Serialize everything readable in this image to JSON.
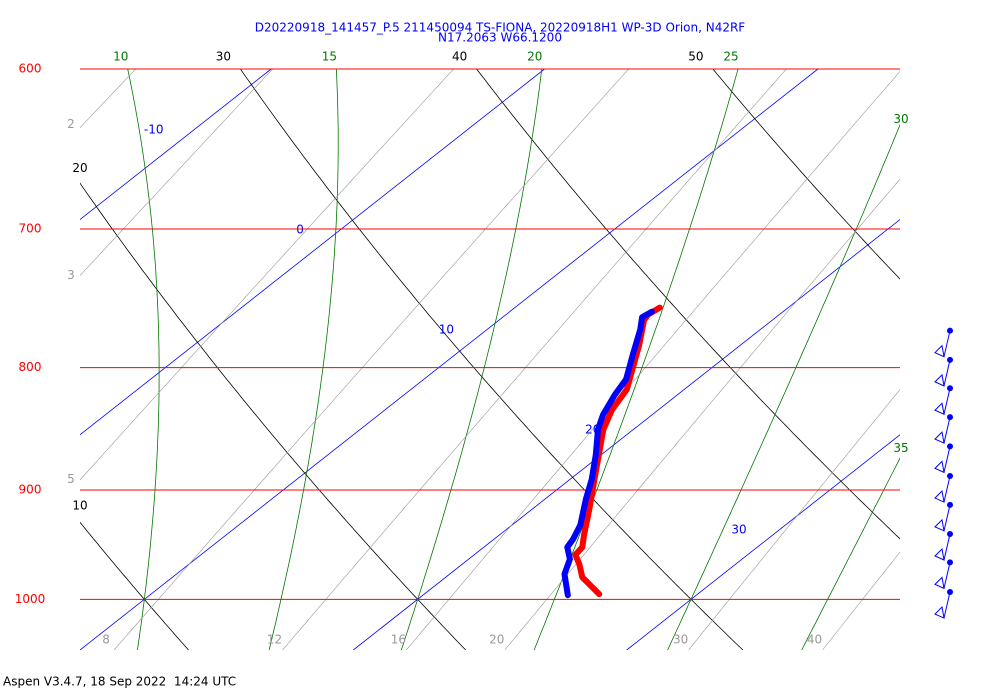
{
  "chart_data": {
    "type": "skew-t",
    "title": "D20220918_141457_P.5 211450094 TS-FIONA, 20220918H1 WP-3D Orion, N42RF",
    "subtitle": "N17.2063 W66.1200",
    "title_color": "#0000ff",
    "ylim": [
      600,
      1050
    ],
    "yticks": [
      600,
      700,
      800,
      900,
      1000
    ],
    "log_y": true,
    "isobar_color": "#ff0000",
    "xlim": [
      10,
      40
    ],
    "xticks": [
      -10,
      0,
      10,
      20,
      30
    ],
    "isotherm_color": "#0000ff",
    "dry_adiabats": [
      10,
      20,
      30,
      40,
      50
    ],
    "dry_adiabat_color": "#000000",
    "moist_adiabats": [
      10,
      15,
      20,
      25,
      30,
      35
    ],
    "moist_adiabat_color": "#007700",
    "mixing_ratios": [
      2,
      3,
      5,
      8,
      12,
      16,
      20,
      30,
      40
    ],
    "mixing_ratio_color": "#999999",
    "series": [
      {
        "color": "#ff0000",
        "pressure": [
          995,
          979,
          967,
          958,
          951,
          940,
          917,
          891,
          874,
          849,
          833,
          817,
          802,
          783,
          764,
          760,
          755
        ],
        "values": [
          26.4,
          25.0,
          24.3,
          23.7,
          23.6,
          23.1,
          22.1,
          20.9,
          20.1,
          18.9,
          18.3,
          17.9,
          17.2,
          16.3,
          15.3,
          15.2,
          15.3
        ]
      },
      {
        "color": "#0000ff",
        "pressure": [
          996,
          976,
          962,
          951,
          944,
          931,
          908,
          891,
          870,
          849,
          837,
          821,
          809,
          790,
          771,
          762,
          758
        ],
        "values": [
          25.3,
          24.2,
          23.7,
          23.05,
          22.9,
          22.5,
          21.5,
          20.8,
          19.8,
          18.7,
          18.2,
          17.7,
          17.4,
          16.5,
          15.6,
          15.1,
          15.2
        ]
      }
    ],
    "barbs": {
      "color": "#0000ff",
      "pressure": [
        772,
        794,
        816,
        839,
        863,
        888,
        913,
        939,
        965,
        993
      ]
    }
  },
  "footer": "Aspen V3.4.7, 18 Sep 2022  14:24 UTC"
}
